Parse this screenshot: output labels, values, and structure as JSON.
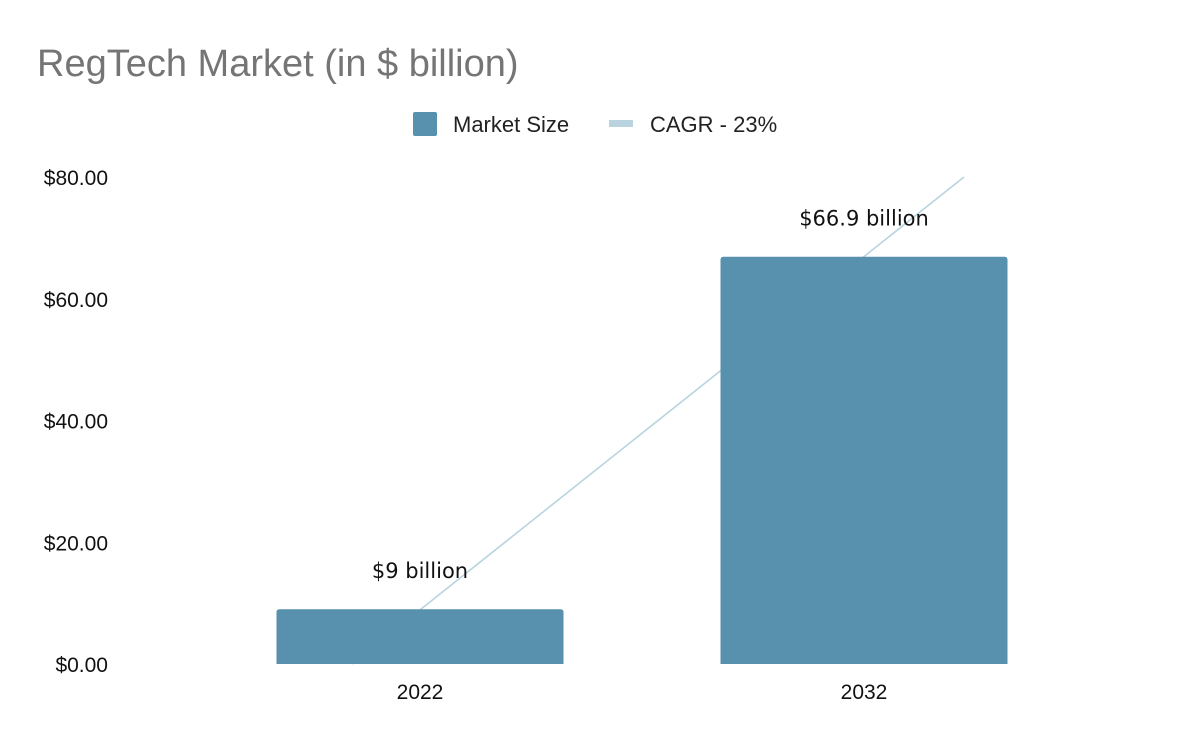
{
  "chart_data": {
    "type": "bar",
    "title": "RegTech Market (in $ billion)",
    "categories": [
      "2022",
      "2032"
    ],
    "series": [
      {
        "name": "Market Size",
        "kind": "bar",
        "color": "#5791ae",
        "values": [
          9,
          66.9
        ],
        "data_labels": [
          "$9 billion",
          "$66.9 billion"
        ]
      },
      {
        "name": "CAGR - 23%",
        "kind": "line",
        "color": "#b9d4df"
      }
    ],
    "y_ticks": [
      "$0.00",
      "$20.00",
      "$40.00",
      "$60.00",
      "$80.00"
    ],
    "ylim": [
      0,
      80
    ],
    "grid": false,
    "legend": "top-center"
  }
}
